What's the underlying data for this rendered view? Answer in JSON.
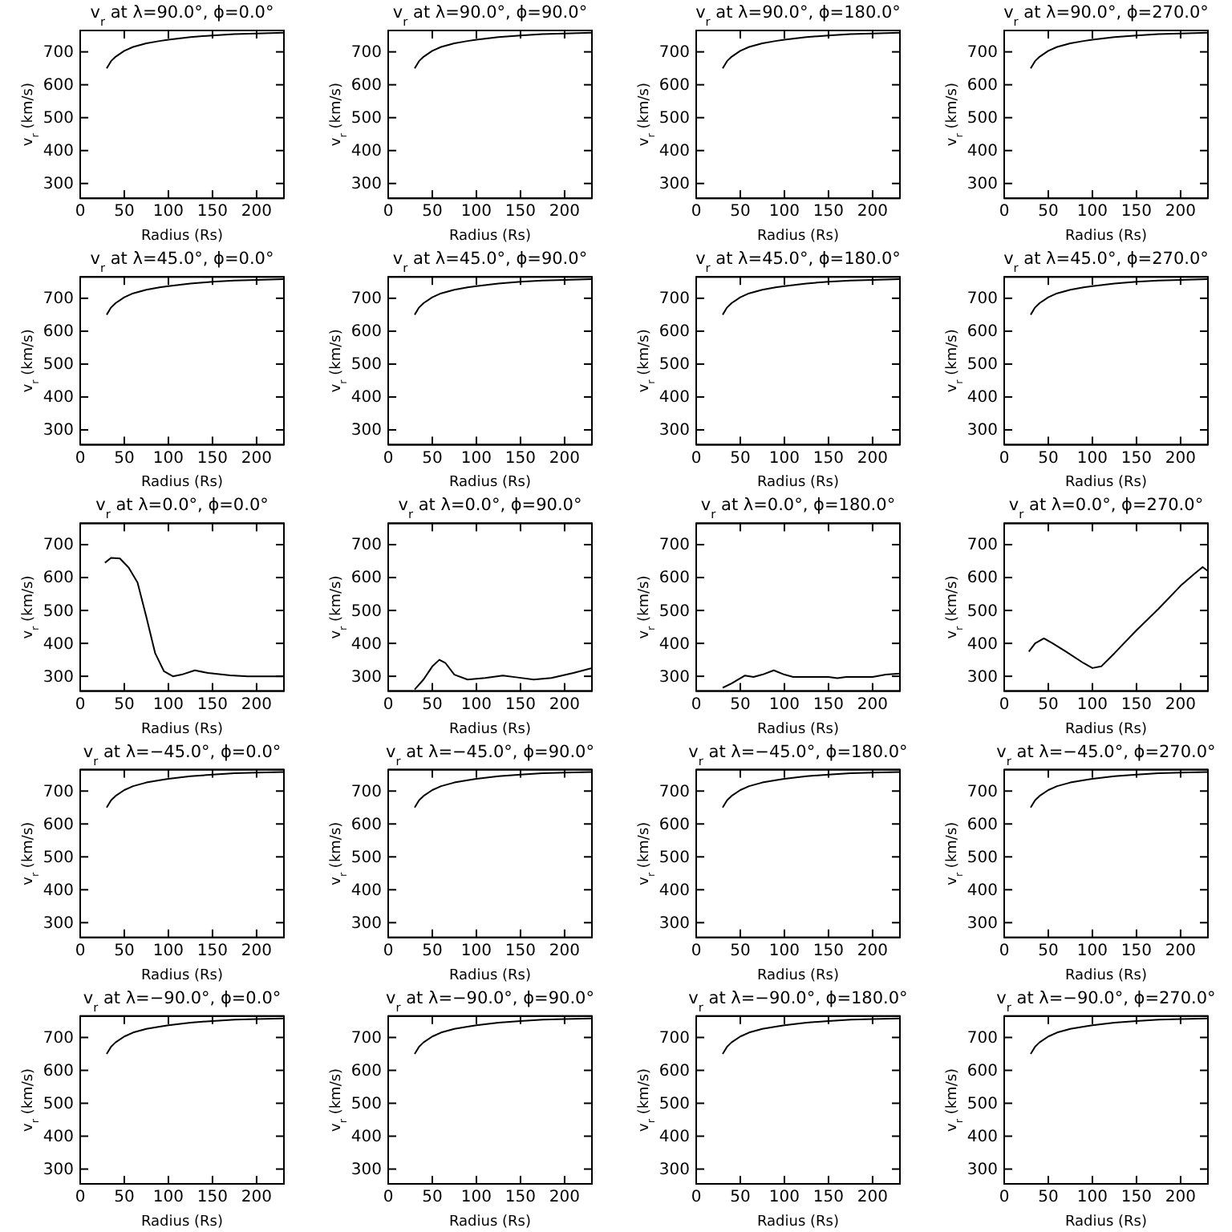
{
  "chart_data": [
    {
      "type": "line",
      "title": "v$_{r}$ at λ=90.0°, ϕ=0.0°",
      "xlabel": "Radius (Rs)",
      "ylabel": "v$_{r}$ (km/s)",
      "xlim": [
        0,
        231
      ],
      "ylim": [
        255,
        765
      ],
      "xticks": [
        0,
        50,
        100,
        150,
        200
      ],
      "yticks": [
        300,
        400,
        500,
        600,
        700
      ],
      "grid": false,
      "marker": "none",
      "line_style": "solid",
      "series": [
        {
          "color": "#000000",
          "x": [
            30,
            35,
            40,
            50,
            60,
            75,
            90,
            100,
            125,
            150,
            175,
            200,
            231
          ],
          "values": [
            650,
            672,
            685,
            703,
            715,
            726,
            733,
            737,
            745,
            750,
            754,
            756,
            758
          ]
        }
      ]
    },
    {
      "type": "line",
      "title": "v$_{r}$ at λ=90.0°, ϕ=90.0°",
      "xlabel": "Radius (Rs)",
      "ylabel": "v$_{r}$ (km/s)",
      "xlim": [
        0,
        231
      ],
      "ylim": [
        255,
        765
      ],
      "xticks": [
        0,
        50,
        100,
        150,
        200
      ],
      "yticks": [
        300,
        400,
        500,
        600,
        700
      ],
      "grid": false,
      "marker": "none",
      "line_style": "solid",
      "series": [
        {
          "color": "#000000",
          "x": [
            30,
            35,
            40,
            50,
            60,
            75,
            90,
            100,
            125,
            150,
            175,
            200,
            231
          ],
          "values": [
            650,
            672,
            685,
            703,
            715,
            726,
            733,
            737,
            745,
            750,
            754,
            756,
            758
          ]
        }
      ]
    },
    {
      "type": "line",
      "title": "v$_{r}$ at λ=90.0°, ϕ=180.0°",
      "xlabel": "Radius (Rs)",
      "ylabel": "v$_{r}$ (km/s)",
      "xlim": [
        0,
        231
      ],
      "ylim": [
        255,
        765
      ],
      "xticks": [
        0,
        50,
        100,
        150,
        200
      ],
      "yticks": [
        300,
        400,
        500,
        600,
        700
      ],
      "grid": false,
      "marker": "none",
      "line_style": "solid",
      "series": [
        {
          "color": "#000000",
          "x": [
            30,
            35,
            40,
            50,
            60,
            75,
            90,
            100,
            125,
            150,
            175,
            200,
            231
          ],
          "values": [
            650,
            672,
            685,
            703,
            715,
            726,
            733,
            737,
            745,
            750,
            754,
            756,
            758
          ]
        }
      ]
    },
    {
      "type": "line",
      "title": "v$_{r}$ at λ=90.0°, ϕ=270.0°",
      "xlabel": "Radius (Rs)",
      "ylabel": "v$_{r}$ (km/s)",
      "xlim": [
        0,
        231
      ],
      "ylim": [
        255,
        765
      ],
      "xticks": [
        0,
        50,
        100,
        150,
        200
      ],
      "yticks": [
        300,
        400,
        500,
        600,
        700
      ],
      "grid": false,
      "marker": "none",
      "line_style": "solid",
      "series": [
        {
          "color": "#000000",
          "x": [
            30,
            35,
            40,
            50,
            60,
            75,
            90,
            100,
            125,
            150,
            175,
            200,
            231
          ],
          "values": [
            650,
            672,
            685,
            703,
            715,
            726,
            733,
            737,
            745,
            750,
            754,
            756,
            758
          ]
        }
      ]
    },
    {
      "type": "line",
      "title": "v$_{r}$ at λ=45.0°, ϕ=0.0°",
      "xlabel": "Radius (Rs)",
      "ylabel": "v$_{r}$ (km/s)",
      "xlim": [
        0,
        231
      ],
      "ylim": [
        255,
        765
      ],
      "xticks": [
        0,
        50,
        100,
        150,
        200
      ],
      "yticks": [
        300,
        400,
        500,
        600,
        700
      ],
      "grid": false,
      "marker": "none",
      "line_style": "solid",
      "series": [
        {
          "color": "#000000",
          "x": [
            30,
            35,
            40,
            50,
            60,
            75,
            90,
            100,
            125,
            150,
            175,
            200,
            231
          ],
          "values": [
            650,
            672,
            685,
            703,
            715,
            726,
            733,
            737,
            745,
            750,
            754,
            756,
            758
          ]
        }
      ]
    },
    {
      "type": "line",
      "title": "v$_{r}$ at λ=45.0°, ϕ=90.0°",
      "xlabel": "Radius (Rs)",
      "ylabel": "v$_{r}$ (km/s)",
      "xlim": [
        0,
        231
      ],
      "ylim": [
        255,
        765
      ],
      "xticks": [
        0,
        50,
        100,
        150,
        200
      ],
      "yticks": [
        300,
        400,
        500,
        600,
        700
      ],
      "grid": false,
      "marker": "none",
      "line_style": "solid",
      "series": [
        {
          "color": "#000000",
          "x": [
            30,
            35,
            40,
            50,
            60,
            75,
            90,
            100,
            125,
            150,
            175,
            200,
            231
          ],
          "values": [
            650,
            672,
            685,
            703,
            715,
            726,
            733,
            737,
            745,
            750,
            754,
            756,
            758
          ]
        }
      ]
    },
    {
      "type": "line",
      "title": "v$_{r}$ at λ=45.0°, ϕ=180.0°",
      "xlabel": "Radius (Rs)",
      "ylabel": "v$_{r}$ (km/s)",
      "xlim": [
        0,
        231
      ],
      "ylim": [
        255,
        765
      ],
      "xticks": [
        0,
        50,
        100,
        150,
        200
      ],
      "yticks": [
        300,
        400,
        500,
        600,
        700
      ],
      "grid": false,
      "marker": "none",
      "line_style": "solid",
      "series": [
        {
          "color": "#000000",
          "x": [
            30,
            35,
            40,
            50,
            60,
            75,
            90,
            100,
            125,
            150,
            175,
            200,
            231
          ],
          "values": [
            650,
            672,
            685,
            703,
            715,
            726,
            733,
            737,
            745,
            750,
            754,
            756,
            758
          ]
        }
      ]
    },
    {
      "type": "line",
      "title": "v$_{r}$ at λ=45.0°, ϕ=270.0°",
      "xlabel": "Radius (Rs)",
      "ylabel": "v$_{r}$ (km/s)",
      "xlim": [
        0,
        231
      ],
      "ylim": [
        255,
        765
      ],
      "xticks": [
        0,
        50,
        100,
        150,
        200
      ],
      "yticks": [
        300,
        400,
        500,
        600,
        700
      ],
      "grid": false,
      "marker": "none",
      "line_style": "solid",
      "series": [
        {
          "color": "#000000",
          "x": [
            30,
            35,
            40,
            50,
            60,
            75,
            90,
            100,
            125,
            150,
            175,
            200,
            231
          ],
          "values": [
            650,
            672,
            685,
            703,
            715,
            726,
            733,
            737,
            745,
            750,
            754,
            756,
            758
          ]
        }
      ]
    },
    {
      "type": "line",
      "title": "v$_{r}$ at λ=0.0°, ϕ=0.0°",
      "xlabel": "Radius (Rs)",
      "ylabel": "v$_{r}$ (km/s)",
      "xlim": [
        0,
        231
      ],
      "ylim": [
        255,
        765
      ],
      "xticks": [
        0,
        50,
        100,
        150,
        200
      ],
      "yticks": [
        300,
        400,
        500,
        600,
        700
      ],
      "grid": false,
      "marker": "none",
      "line_style": "solid",
      "series": [
        {
          "color": "#000000",
          "x": [
            28,
            35,
            45,
            55,
            65,
            75,
            85,
            95,
            105,
            115,
            130,
            145,
            170,
            190,
            231
          ],
          "values": [
            645,
            660,
            658,
            630,
            585,
            480,
            370,
            315,
            300,
            305,
            318,
            310,
            303,
            300,
            300
          ]
        }
      ]
    },
    {
      "type": "line",
      "title": "v$_{r}$ at λ=0.0°, ϕ=90.0°",
      "xlabel": "Radius (Rs)",
      "ylabel": "v$_{r}$ (km/s)",
      "xlim": [
        0,
        231
      ],
      "ylim": [
        255,
        765
      ],
      "xticks": [
        0,
        50,
        100,
        150,
        200
      ],
      "yticks": [
        300,
        400,
        500,
        600,
        700
      ],
      "grid": false,
      "marker": "none",
      "line_style": "solid",
      "series": [
        {
          "color": "#000000",
          "x": [
            30,
            40,
            50,
            58,
            65,
            75,
            90,
            110,
            130,
            145,
            165,
            185,
            210,
            231
          ],
          "values": [
            260,
            290,
            330,
            350,
            340,
            305,
            290,
            295,
            302,
            297,
            290,
            295,
            310,
            325
          ]
        }
      ]
    },
    {
      "type": "line",
      "title": "v$_{r}$ at λ=0.0°, ϕ=180.0°",
      "xlabel": "Radius (Rs)",
      "ylabel": "v$_{r}$ (km/s)",
      "xlim": [
        0,
        231
      ],
      "ylim": [
        255,
        765
      ],
      "xticks": [
        0,
        50,
        100,
        150,
        200
      ],
      "yticks": [
        300,
        400,
        500,
        600,
        700
      ],
      "grid": false,
      "marker": "none",
      "line_style": "solid",
      "series": [
        {
          "color": "#000000",
          "x": [
            30,
            40,
            55,
            65,
            75,
            88,
            100,
            110,
            150,
            160,
            170,
            200,
            215,
            231
          ],
          "values": [
            265,
            278,
            302,
            298,
            305,
            318,
            305,
            298,
            298,
            294,
            298,
            298,
            305,
            308
          ]
        }
      ]
    },
    {
      "type": "line",
      "title": "v$_{r}$ at λ=0.0°, ϕ=270.0°",
      "xlabel": "Radius (Rs)",
      "ylabel": "v$_{r}$ (km/s)",
      "xlim": [
        0,
        231
      ],
      "ylim": [
        255,
        765
      ],
      "xticks": [
        0,
        50,
        100,
        150,
        200
      ],
      "yticks": [
        300,
        400,
        500,
        600,
        700
      ],
      "grid": false,
      "marker": "none",
      "line_style": "solid",
      "series": [
        {
          "color": "#000000",
          "x": [
            28,
            35,
            45,
            55,
            70,
            90,
            100,
            110,
            125,
            150,
            175,
            200,
            215,
            225,
            231
          ],
          "values": [
            375,
            400,
            415,
            400,
            375,
            340,
            325,
            330,
            370,
            440,
            505,
            575,
            610,
            632,
            620
          ]
        }
      ]
    },
    {
      "type": "line",
      "title": "v$_{r}$ at λ=−45.0°, ϕ=0.0°",
      "xlabel": "Radius (Rs)",
      "ylabel": "v$_{r}$ (km/s)",
      "xlim": [
        0,
        231
      ],
      "ylim": [
        255,
        765
      ],
      "xticks": [
        0,
        50,
        100,
        150,
        200
      ],
      "yticks": [
        300,
        400,
        500,
        600,
        700
      ],
      "grid": false,
      "marker": "none",
      "line_style": "solid",
      "series": [
        {
          "color": "#000000",
          "x": [
            30,
            35,
            40,
            50,
            60,
            75,
            90,
            100,
            125,
            150,
            175,
            200,
            231
          ],
          "values": [
            650,
            672,
            685,
            703,
            715,
            726,
            733,
            737,
            745,
            750,
            754,
            756,
            758
          ]
        }
      ]
    },
    {
      "type": "line",
      "title": "v$_{r}$ at λ=−45.0°, ϕ=90.0°",
      "xlabel": "Radius (Rs)",
      "ylabel": "v$_{r}$ (km/s)",
      "xlim": [
        0,
        231
      ],
      "ylim": [
        255,
        765
      ],
      "xticks": [
        0,
        50,
        100,
        150,
        200
      ],
      "yticks": [
        300,
        400,
        500,
        600,
        700
      ],
      "grid": false,
      "marker": "none",
      "line_style": "solid",
      "series": [
        {
          "color": "#000000",
          "x": [
            30,
            35,
            40,
            50,
            60,
            75,
            90,
            100,
            125,
            150,
            175,
            200,
            231
          ],
          "values": [
            650,
            672,
            685,
            703,
            715,
            726,
            733,
            737,
            745,
            750,
            754,
            756,
            758
          ]
        }
      ]
    },
    {
      "type": "line",
      "title": "v$_{r}$ at λ=−45.0°, ϕ=180.0°",
      "xlabel": "Radius (Rs)",
      "ylabel": "v$_{r}$ (km/s)",
      "xlim": [
        0,
        231
      ],
      "ylim": [
        255,
        765
      ],
      "xticks": [
        0,
        50,
        100,
        150,
        200
      ],
      "yticks": [
        300,
        400,
        500,
        600,
        700
      ],
      "grid": false,
      "marker": "none",
      "line_style": "solid",
      "series": [
        {
          "color": "#000000",
          "x": [
            30,
            35,
            40,
            50,
            60,
            75,
            90,
            100,
            125,
            150,
            175,
            200,
            231
          ],
          "values": [
            650,
            672,
            685,
            703,
            715,
            726,
            733,
            737,
            745,
            750,
            754,
            756,
            758
          ]
        }
      ]
    },
    {
      "type": "line",
      "title": "v$_{r}$ at λ=−45.0°, ϕ=270.0°",
      "xlabel": "Radius (Rs)",
      "ylabel": "v$_{r}$ (km/s)",
      "xlim": [
        0,
        231
      ],
      "ylim": [
        255,
        765
      ],
      "xticks": [
        0,
        50,
        100,
        150,
        200
      ],
      "yticks": [
        300,
        400,
        500,
        600,
        700
      ],
      "grid": false,
      "marker": "none",
      "line_style": "solid",
      "series": [
        {
          "color": "#000000",
          "x": [
            30,
            35,
            40,
            50,
            60,
            75,
            90,
            100,
            125,
            150,
            175,
            200,
            231
          ],
          "values": [
            650,
            672,
            685,
            703,
            715,
            726,
            733,
            737,
            745,
            750,
            754,
            756,
            758
          ]
        }
      ]
    },
    {
      "type": "line",
      "title": "v$_{r}$ at λ=−90.0°, ϕ=0.0°",
      "xlabel": "Radius (Rs)",
      "ylabel": "v$_{r}$ (km/s)",
      "xlim": [
        0,
        231
      ],
      "ylim": [
        255,
        765
      ],
      "xticks": [
        0,
        50,
        100,
        150,
        200
      ],
      "yticks": [
        300,
        400,
        500,
        600,
        700
      ],
      "grid": false,
      "marker": "none",
      "line_style": "solid",
      "series": [
        {
          "color": "#000000",
          "x": [
            30,
            35,
            40,
            50,
            60,
            75,
            90,
            100,
            125,
            150,
            175,
            200,
            231
          ],
          "values": [
            650,
            672,
            685,
            703,
            715,
            726,
            733,
            737,
            745,
            750,
            754,
            756,
            758
          ]
        }
      ]
    },
    {
      "type": "line",
      "title": "v$_{r}$ at λ=−90.0°, ϕ=90.0°",
      "xlabel": "Radius (Rs)",
      "ylabel": "v$_{r}$ (km/s)",
      "xlim": [
        0,
        231
      ],
      "ylim": [
        255,
        765
      ],
      "xticks": [
        0,
        50,
        100,
        150,
        200
      ],
      "yticks": [
        300,
        400,
        500,
        600,
        700
      ],
      "grid": false,
      "marker": "none",
      "line_style": "solid",
      "series": [
        {
          "color": "#000000",
          "x": [
            30,
            35,
            40,
            50,
            60,
            75,
            90,
            100,
            125,
            150,
            175,
            200,
            231
          ],
          "values": [
            650,
            672,
            685,
            703,
            715,
            726,
            733,
            737,
            745,
            750,
            754,
            756,
            758
          ]
        }
      ]
    },
    {
      "type": "line",
      "title": "v$_{r}$ at λ=−90.0°, ϕ=180.0°",
      "xlabel": "Radius (Rs)",
      "ylabel": "v$_{r}$ (km/s)",
      "xlim": [
        0,
        231
      ],
      "ylim": [
        255,
        765
      ],
      "xticks": [
        0,
        50,
        100,
        150,
        200
      ],
      "yticks": [
        300,
        400,
        500,
        600,
        700
      ],
      "grid": false,
      "marker": "none",
      "line_style": "solid",
      "series": [
        {
          "color": "#000000",
          "x": [
            30,
            35,
            40,
            50,
            60,
            75,
            90,
            100,
            125,
            150,
            175,
            200,
            231
          ],
          "values": [
            650,
            672,
            685,
            703,
            715,
            726,
            733,
            737,
            745,
            750,
            754,
            756,
            758
          ]
        }
      ]
    },
    {
      "type": "line",
      "title": "v$_{r}$ at λ=−90.0°, ϕ=270.0°",
      "xlabel": "Radius (Rs)",
      "ylabel": "v$_{r}$ (km/s)",
      "xlim": [
        0,
        231
      ],
      "ylim": [
        255,
        765
      ],
      "xticks": [
        0,
        50,
        100,
        150,
        200
      ],
      "yticks": [
        300,
        400,
        500,
        600,
        700
      ],
      "grid": false,
      "marker": "none",
      "line_style": "solid",
      "series": [
        {
          "color": "#000000",
          "x": [
            30,
            35,
            40,
            50,
            60,
            75,
            90,
            100,
            125,
            150,
            175,
            200,
            231
          ],
          "values": [
            650,
            672,
            685,
            703,
            715,
            726,
            733,
            737,
            745,
            750,
            754,
            756,
            758
          ]
        }
      ]
    }
  ]
}
